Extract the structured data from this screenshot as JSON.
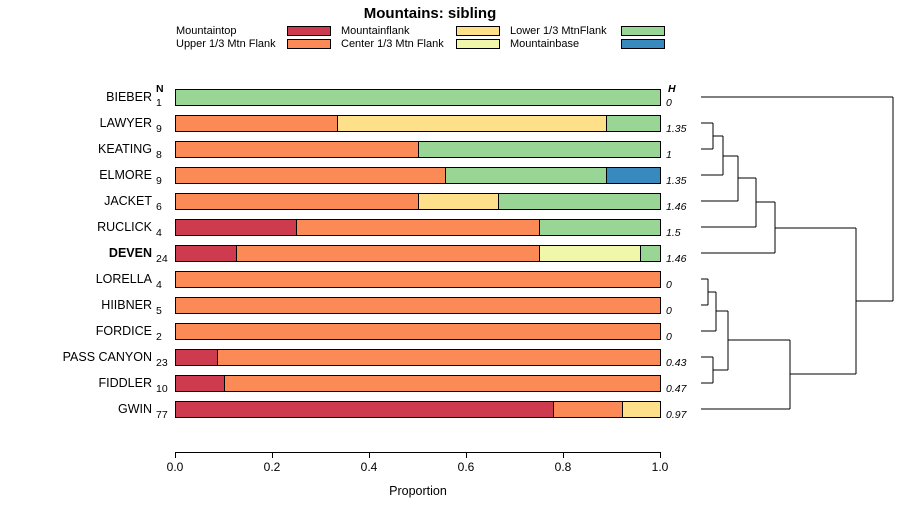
{
  "title": "Mountains: sibling",
  "headers": {
    "n": "N",
    "h": "H"
  },
  "axis": {
    "label": "Proportion",
    "ticks": [
      "0.0",
      "0.2",
      "0.4",
      "0.6",
      "0.8",
      "1.0"
    ],
    "tick_values": [
      0,
      0.2,
      0.4,
      0.6,
      0.8,
      1.0
    ],
    "xlim": [
      0,
      1
    ]
  },
  "palette": {
    "mountaintop": "#CE3A4E",
    "upper13": "#FB8A57",
    "mountainflank": "#FEE08B",
    "center13": "#F0F7AB",
    "lower13": "#99D594",
    "mountainbase": "#3789BE"
  },
  "legend": {
    "items": [
      {
        "label": "Mountaintop",
        "key": "mountaintop"
      },
      {
        "label": "Upper 1/3 Mtn Flank",
        "key": "upper13"
      },
      {
        "label": "Mountainflank",
        "key": "mountainflank"
      },
      {
        "label": "Center 1/3 Mtn Flank",
        "key": "center13"
      },
      {
        "label": "Lower 1/3 MtnFlank",
        "key": "lower13"
      },
      {
        "label": "Mountainbase",
        "key": "mountainbase"
      }
    ]
  },
  "chart_data": {
    "type": "bar",
    "orientation": "horizontal",
    "stacked": true,
    "title": "Mountains: sibling",
    "xlabel": "Proportion",
    "xlim": [
      0,
      1
    ],
    "legend_entries": [
      "Mountaintop",
      "Upper 1/3 Mtn Flank",
      "Mountainflank",
      "Center 1/3 Mtn Flank",
      "Lower 1/3 MtnFlank",
      "Mountainbase"
    ],
    "categories": [
      "BIEBER",
      "LAWYER",
      "KEATING",
      "ELMORE",
      "JACKET",
      "RUCLICK",
      "DEVEN",
      "LORELLA",
      "HIIBNER",
      "FORDICE",
      "PASS CANYON",
      "FIDDLER",
      "GWIN"
    ],
    "rows": [
      {
        "name": "BIEBER",
        "n": "1",
        "h": "0",
        "bold": false,
        "segments": [
          {
            "key": "lower13",
            "value": 1.0
          }
        ]
      },
      {
        "name": "LAWYER",
        "n": "9",
        "h": "1.35",
        "bold": false,
        "segments": [
          {
            "key": "upper13",
            "value": 0.333
          },
          {
            "key": "mountainflank",
            "value": 0.556
          },
          {
            "key": "lower13",
            "value": 0.111
          }
        ]
      },
      {
        "name": "KEATING",
        "n": "8",
        "h": "1",
        "bold": false,
        "segments": [
          {
            "key": "upper13",
            "value": 0.5
          },
          {
            "key": "lower13",
            "value": 0.5
          }
        ]
      },
      {
        "name": "ELMORE",
        "n": "9",
        "h": "1.35",
        "bold": false,
        "segments": [
          {
            "key": "upper13",
            "value": 0.556
          },
          {
            "key": "lower13",
            "value": 0.333
          },
          {
            "key": "mountainbase",
            "value": 0.111
          }
        ]
      },
      {
        "name": "JACKET",
        "n": "6",
        "h": "1.46",
        "bold": false,
        "segments": [
          {
            "key": "upper13",
            "value": 0.5
          },
          {
            "key": "mountainflank",
            "value": 0.167
          },
          {
            "key": "lower13",
            "value": 0.333
          }
        ]
      },
      {
        "name": "RUCLICK",
        "n": "4",
        "h": "1.5",
        "bold": false,
        "segments": [
          {
            "key": "mountaintop",
            "value": 0.25
          },
          {
            "key": "upper13",
            "value": 0.5
          },
          {
            "key": "lower13",
            "value": 0.25
          }
        ]
      },
      {
        "name": "DEVEN",
        "n": "24",
        "h": "1.46",
        "bold": true,
        "segments": [
          {
            "key": "mountaintop",
            "value": 0.125
          },
          {
            "key": "upper13",
            "value": 0.625
          },
          {
            "key": "center13",
            "value": 0.208
          },
          {
            "key": "lower13",
            "value": 0.042
          }
        ]
      },
      {
        "name": "LORELLA",
        "n": "4",
        "h": "0",
        "bold": false,
        "segments": [
          {
            "key": "upper13",
            "value": 1.0
          }
        ]
      },
      {
        "name": "HIIBNER",
        "n": "5",
        "h": "0",
        "bold": false,
        "segments": [
          {
            "key": "upper13",
            "value": 1.0
          }
        ]
      },
      {
        "name": "FORDICE",
        "n": "2",
        "h": "0",
        "bold": false,
        "segments": [
          {
            "key": "upper13",
            "value": 1.0
          }
        ]
      },
      {
        "name": "PASS CANYON",
        "n": "23",
        "h": "0.43",
        "bold": false,
        "segments": [
          {
            "key": "mountaintop",
            "value": 0.087
          },
          {
            "key": "upper13",
            "value": 0.913
          }
        ]
      },
      {
        "name": "FIDDLER",
        "n": "10",
        "h": "0.47",
        "bold": false,
        "segments": [
          {
            "key": "mountaintop",
            "value": 0.1
          },
          {
            "key": "upper13",
            "value": 0.9
          }
        ]
      },
      {
        "name": "GWIN",
        "n": "77",
        "h": "0.97",
        "bold": false,
        "segments": [
          {
            "key": "mountaintop",
            "value": 0.779
          },
          {
            "key": "upper13",
            "value": 0.143
          },
          {
            "key": "mountainflank",
            "value": 0.078
          }
        ]
      }
    ],
    "dendrogram": {
      "segments": [
        [
          701,
          97,
          893,
          97
        ],
        [
          701,
          123,
          713,
          123
        ],
        [
          701,
          149,
          713,
          149
        ],
        [
          713,
          123,
          713,
          149
        ],
        [
          713,
          136,
          723,
          136
        ],
        [
          701,
          175,
          723,
          175
        ],
        [
          723,
          136,
          723,
          175
        ],
        [
          723,
          156,
          738,
          156
        ],
        [
          701,
          201,
          738,
          201
        ],
        [
          738,
          156,
          738,
          201
        ],
        [
          738,
          178,
          756,
          178
        ],
        [
          701,
          227,
          756,
          227
        ],
        [
          756,
          178,
          756,
          227
        ],
        [
          756,
          202,
          775,
          202
        ],
        [
          701,
          253,
          775,
          253
        ],
        [
          775,
          202,
          775,
          253
        ],
        [
          775,
          228,
          856,
          228
        ],
        [
          701,
          279,
          708,
          279
        ],
        [
          701,
          305,
          708,
          305
        ],
        [
          708,
          279,
          708,
          305
        ],
        [
          708,
          292,
          716,
          292
        ],
        [
          701,
          331,
          716,
          331
        ],
        [
          716,
          292,
          716,
          331
        ],
        [
          716,
          311,
          728,
          311
        ],
        [
          701,
          357,
          713,
          357
        ],
        [
          701,
          383,
          713,
          383
        ],
        [
          713,
          357,
          713,
          383
        ],
        [
          713,
          370,
          728,
          370
        ],
        [
          728,
          311,
          728,
          370
        ],
        [
          728,
          340,
          790,
          340
        ],
        [
          701,
          409,
          790,
          409
        ],
        [
          790,
          340,
          790,
          409
        ],
        [
          790,
          374,
          856,
          374
        ],
        [
          856,
          228,
          856,
          374
        ],
        [
          856,
          301,
          893,
          301
        ],
        [
          893,
          97,
          893,
          301
        ]
      ]
    }
  }
}
